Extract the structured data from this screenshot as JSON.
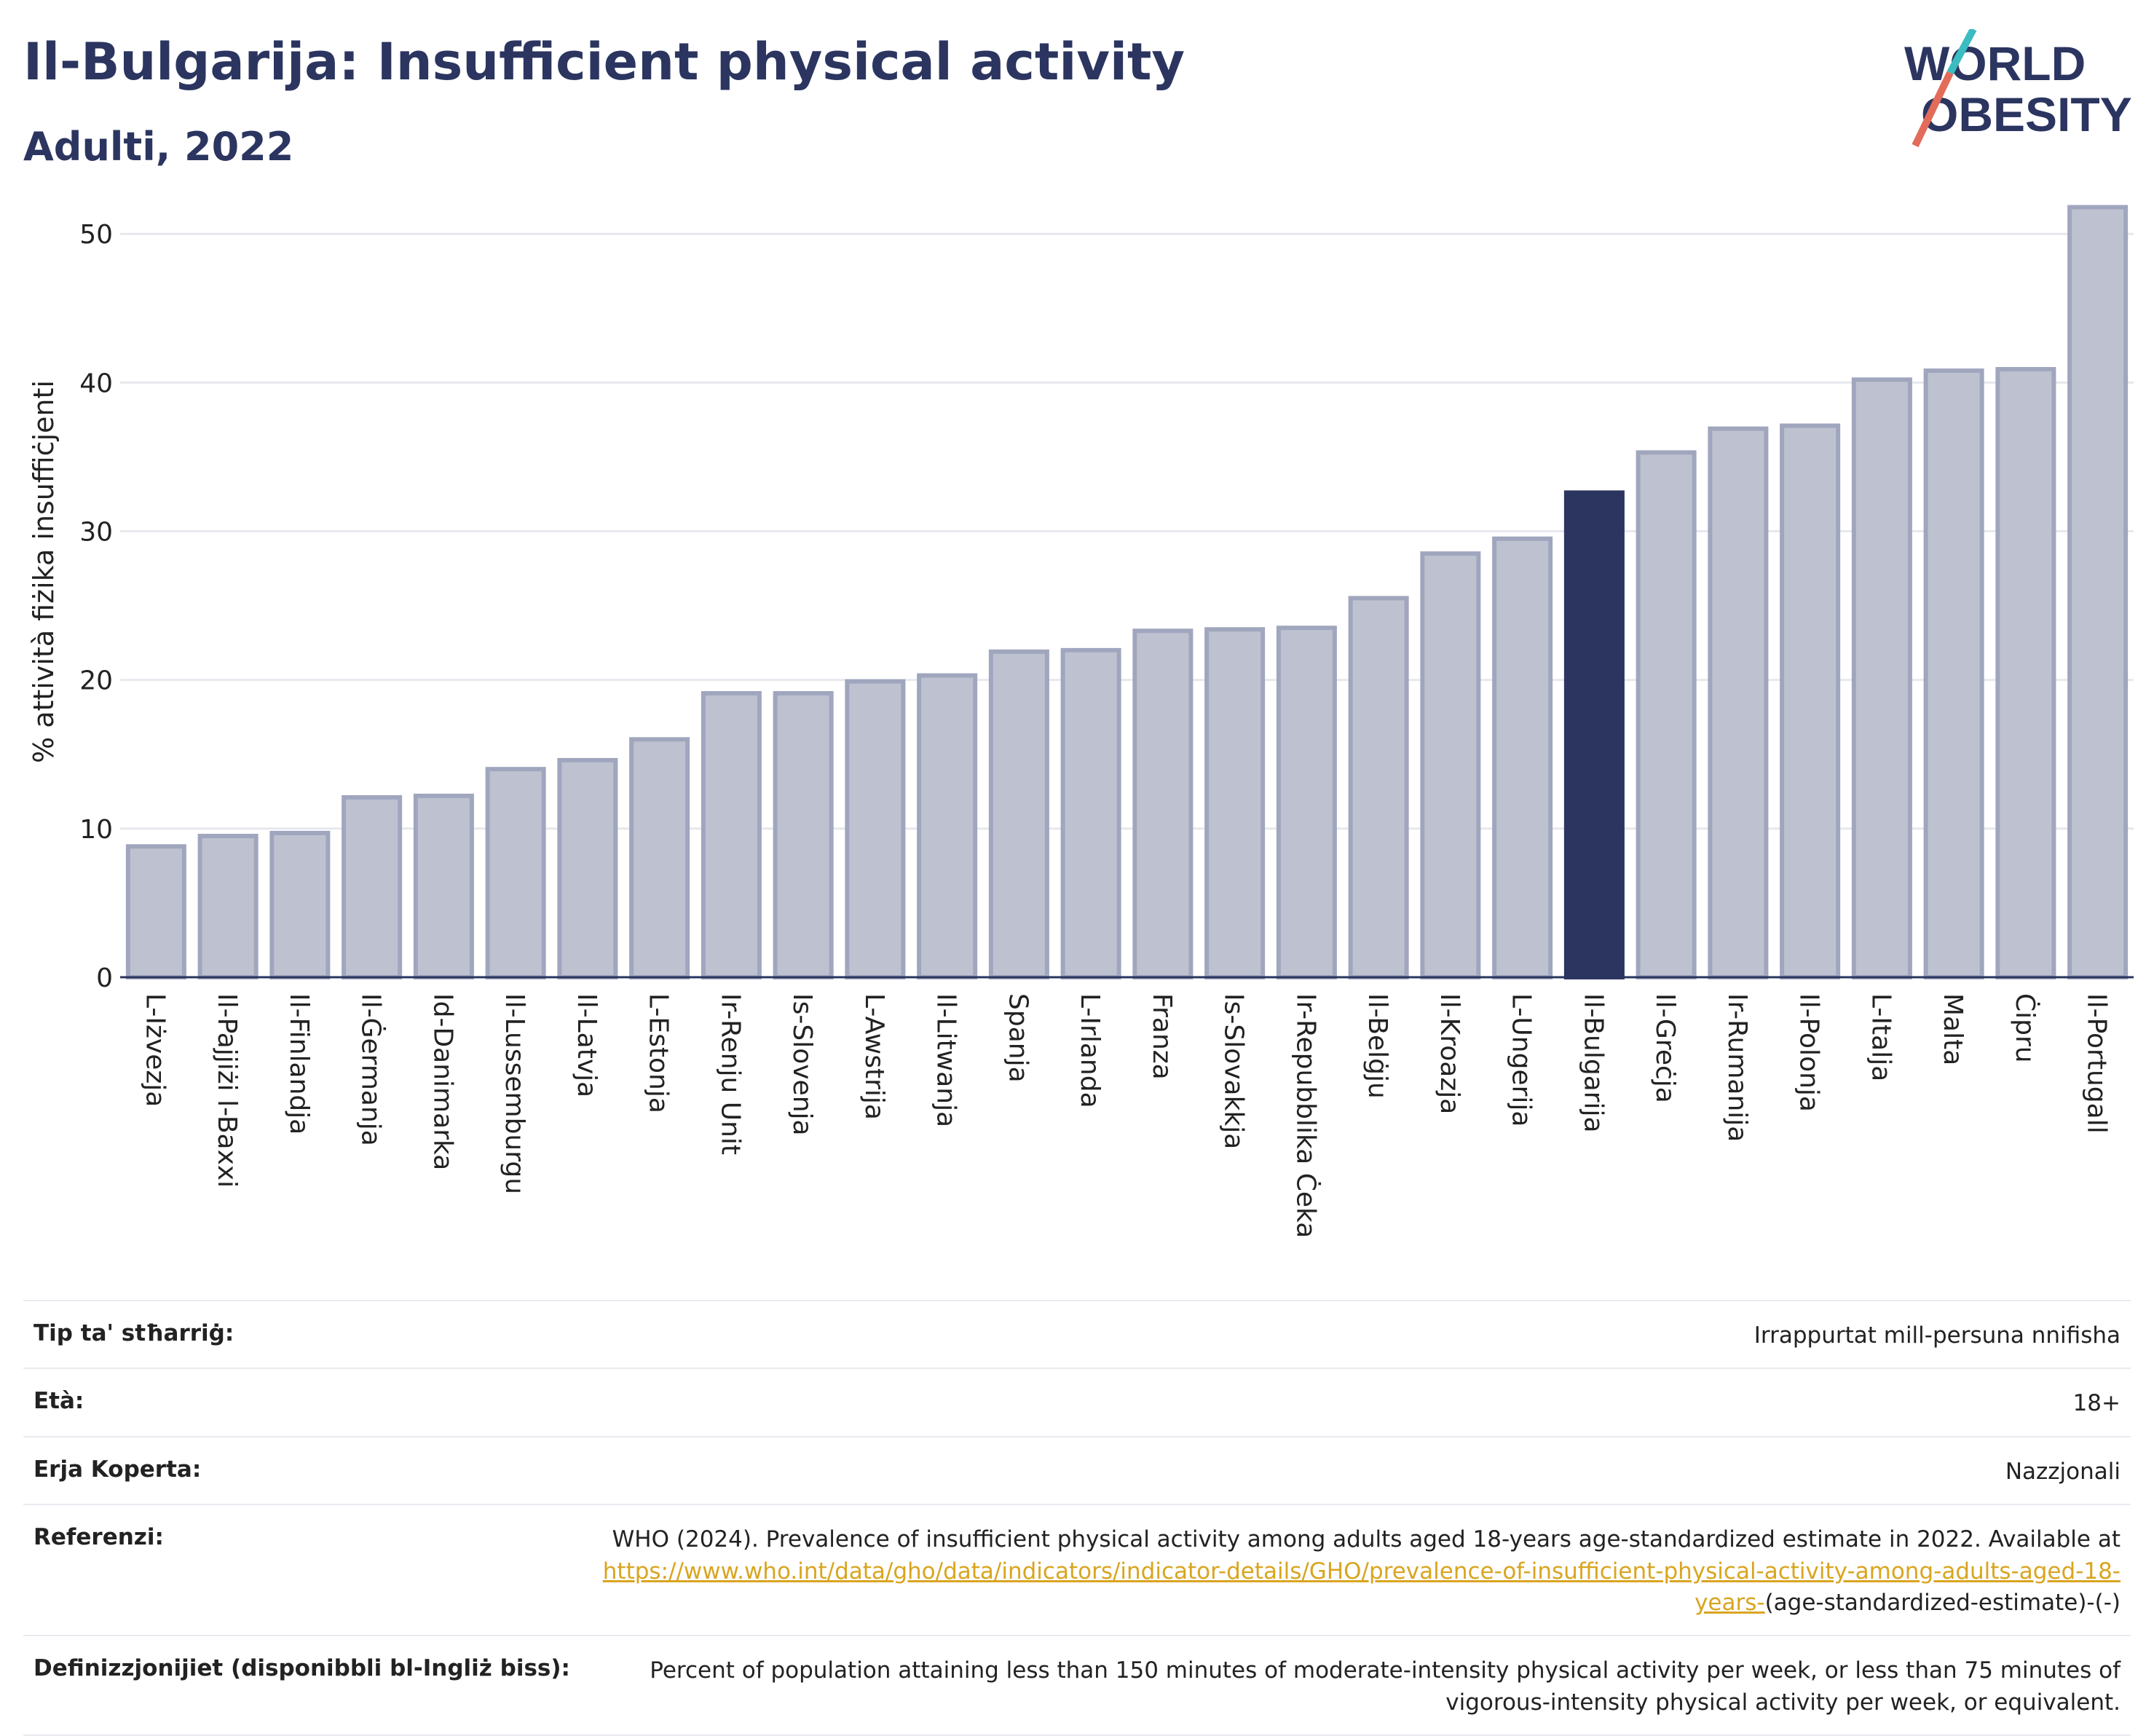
{
  "header": {
    "title": "Il-Bulgarija: Insufficient physical activity",
    "subtitle": "Adulti, 2022",
    "logo_line1": "WORLD",
    "logo_line2": "OBESITY"
  },
  "chart_data": {
    "type": "bar",
    "ylabel": "% attività fiżika insuffiċjenti",
    "ylim": [
      0,
      53
    ],
    "yticks": [
      0,
      10,
      20,
      30,
      40,
      50
    ],
    "grid": true,
    "highlight": "Il-Bulgarija",
    "colors": {
      "bar": "#bec2d0",
      "bar_edge": "#a0a6bd",
      "highlight": "#2b3560",
      "grid": "#e6e8ee",
      "axis": "#2b3560"
    },
    "categories": [
      "L-Iżvezja",
      "Il-Pajjiżi l-Baxxi",
      "Il-Finlandja",
      "Il-Ġermanja",
      "Id-Danimarka",
      "Il-Lussemburgu",
      "Il-Latvja",
      "L-Estonja",
      "Ir-Renju Unit",
      "Is-Slovenja",
      "L-Awstrija",
      "Il-Litwanja",
      "Spanja",
      "L-Irlanda",
      "Franza",
      "Is-Slovakkja",
      "Ir-Repubblika Ċeka",
      "Il-Belġju",
      "Il-Kroazja",
      "L-Ungerija",
      "Il-Bulgarija",
      "Il-Greċja",
      "Ir-Rumanija",
      "Il-Polonja",
      "L-Italja",
      "Malta",
      "Ċipru",
      "Il-Portugall"
    ],
    "values": [
      8.8,
      9.5,
      9.7,
      12.1,
      12.2,
      14.0,
      14.6,
      16.0,
      19.1,
      19.1,
      19.9,
      20.3,
      21.9,
      22.0,
      23.3,
      23.4,
      23.5,
      25.5,
      28.5,
      29.5,
      32.6,
      35.3,
      36.9,
      37.1,
      40.2,
      40.8,
      40.9,
      51.8
    ]
  },
  "meta": {
    "rows": [
      {
        "label": "Tip ta' stħarriġ:",
        "value": "Irrappurtat mill-persuna nnifisha"
      },
      {
        "label": "Età:",
        "value": "18+"
      },
      {
        "label": "Erja Koperta:",
        "value": "Nazzjonali"
      }
    ],
    "ref_label": "Referenzi:",
    "ref_text": "WHO (2024). Prevalence of insufficient physical activity among adults aged 18-years age-standardized estimate in 2022. Available at",
    "ref_link": "https://www.who.int/data/gho/data/indicators/indicator-details/GHO/prevalence-of-insufficient-physical-activity-among-adults-aged-18-years-",
    "ref_tail": "(age-standardized-estimate)-(-)",
    "def_label": "Definizzjonijiet (disponibbli bl-Ingliż biss):",
    "def_text": "Percent of population attaining less than 150 minutes of moderate-intensity physical activity per week, or less than 75 minutes of vigorous-intensity physical activity per week, or equivalent."
  }
}
